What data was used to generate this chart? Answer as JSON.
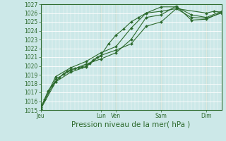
{
  "xlabel": "Pression niveau de la mer( hPa )",
  "bg_color": "#cce8e8",
  "grid_major_color": "#aacccc",
  "grid_minor_color": "#bbdddd",
  "line_color": "#2d6a2d",
  "ylim": [
    1015,
    1027
  ],
  "yticks": [
    1015,
    1016,
    1017,
    1018,
    1019,
    1020,
    1021,
    1022,
    1023,
    1024,
    1025,
    1026,
    1027
  ],
  "day_labels": [
    "Jeu",
    "Lun",
    "Ven",
    "Sam",
    "Dim"
  ],
  "day_positions": [
    0,
    96,
    120,
    192,
    264
  ],
  "total_hours": 288,
  "series": [
    [
      [
        0,
        6,
        12,
        18,
        24,
        30,
        36,
        42,
        48,
        54,
        60,
        66,
        72,
        78,
        84,
        90,
        96,
        108,
        120,
        132,
        144,
        156,
        168,
        192,
        216,
        264,
        276,
        288
      ],
      [
        1015.0,
        1016.2,
        1017.2,
        1017.8,
        1018.2,
        1018.7,
        1019.1,
        1019.4,
        1019.6,
        1019.7,
        1019.8,
        1019.9,
        1020.0,
        1020.3,
        1020.7,
        1021.0,
        1021.2,
        1022.5,
        1023.5,
        1024.2,
        1025.0,
        1025.5,
        1026.0,
        1026.2,
        1026.5,
        1026.0,
        1026.2,
        1026.1
      ]
    ],
    [
      [
        0,
        24,
        48,
        72,
        96,
        120,
        144,
        168,
        192,
        216,
        240,
        264,
        288
      ],
      [
        1015.3,
        1018.8,
        1019.8,
        1020.5,
        1021.5,
        1022.2,
        1024.3,
        1026.0,
        1026.7,
        1026.7,
        1025.8,
        1025.5,
        1026.2
      ]
    ],
    [
      [
        0,
        24,
        48,
        72,
        96,
        120,
        144,
        168,
        192,
        216,
        240,
        264,
        288
      ],
      [
        1015.2,
        1018.5,
        1019.5,
        1020.2,
        1020.8,
        1021.5,
        1023.0,
        1025.5,
        1025.8,
        1026.8,
        1025.2,
        1025.3,
        1026.1
      ]
    ],
    [
      [
        0,
        24,
        48,
        72,
        96,
        120,
        144,
        168,
        192,
        216,
        240,
        264,
        288
      ],
      [
        1015.1,
        1018.2,
        1019.3,
        1019.9,
        1021.2,
        1021.8,
        1022.5,
        1024.5,
        1025.0,
        1026.5,
        1025.5,
        1025.4,
        1026.0
      ]
    ]
  ],
  "marker": "D",
  "markersize": 2.0,
  "linewidth": 0.8,
  "tick_fontsize": 5.5,
  "label_fontsize": 7.5
}
